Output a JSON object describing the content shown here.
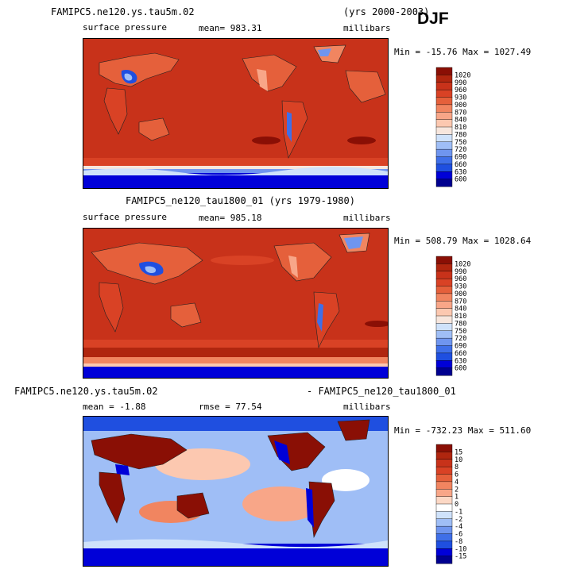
{
  "season": "DJF",
  "colors": {
    "pressure_scale": [
      "#00008f",
      "#0000d8",
      "#1f4fe0",
      "#3f6fe8",
      "#6f95ef",
      "#9fbef6",
      "#cfe2fb",
      "#f7e6dd",
      "#fcc8b0",
      "#f8a688",
      "#f18560",
      "#e5603b",
      "#d94225",
      "#c8321a",
      "#b0260f",
      "#8a0f05"
    ],
    "diff_scale": [
      "#00008f",
      "#0000d8",
      "#1f4fe0",
      "#3f6fe8",
      "#6f95ef",
      "#9fbef6",
      "#cfe2fb",
      "#ffffff",
      "#fcd8c5",
      "#f8a688",
      "#f18560",
      "#e5603b",
      "#d94225",
      "#c8321a",
      "#b0260f",
      "#8a0f05"
    ]
  },
  "panels": [
    {
      "title_left": "FAMIPC5.ne120.ys.tau5m.02",
      "title_right": "(yrs 2000-2003)",
      "variable": "surface pressure",
      "stat": "mean= 983.31",
      "units": "millibars",
      "minmax": "Min = -15.76 Max = 1027.49",
      "colorbar_labels": [
        "1020",
        "990",
        "960",
        "930",
        "900",
        "870",
        "840",
        "810",
        "780",
        "750",
        "720",
        "690",
        "660",
        "630",
        "600"
      ]
    },
    {
      "title_center": "FAMIPC5_ne120_tau1800_01 (yrs 1979-1980)",
      "variable": "surface pressure",
      "stat": "mean= 985.18",
      "units": "millibars",
      "minmax": "Min = 508.79 Max = 1028.64",
      "colorbar_labels": [
        "1020",
        "990",
        "960",
        "930",
        "900",
        "870",
        "840",
        "810",
        "780",
        "750",
        "720",
        "690",
        "660",
        "630",
        "600"
      ]
    },
    {
      "title_left": "FAMIPC5.ne120.ys.tau5m.02",
      "title_right": "- FAMIPC5_ne120_tau1800_01",
      "stat_mean": "mean =  -1.88",
      "stat_rmse": "rmse =  77.54",
      "units": "millibars",
      "minmax": "Min = -732.23 Max = 511.60",
      "colorbar_labels": [
        "15",
        "10",
        "8",
        "6",
        "4",
        "2",
        "1",
        "0",
        "-1",
        "-2",
        "-4",
        "-6",
        "-8",
        "-10",
        "-15"
      ]
    }
  ]
}
